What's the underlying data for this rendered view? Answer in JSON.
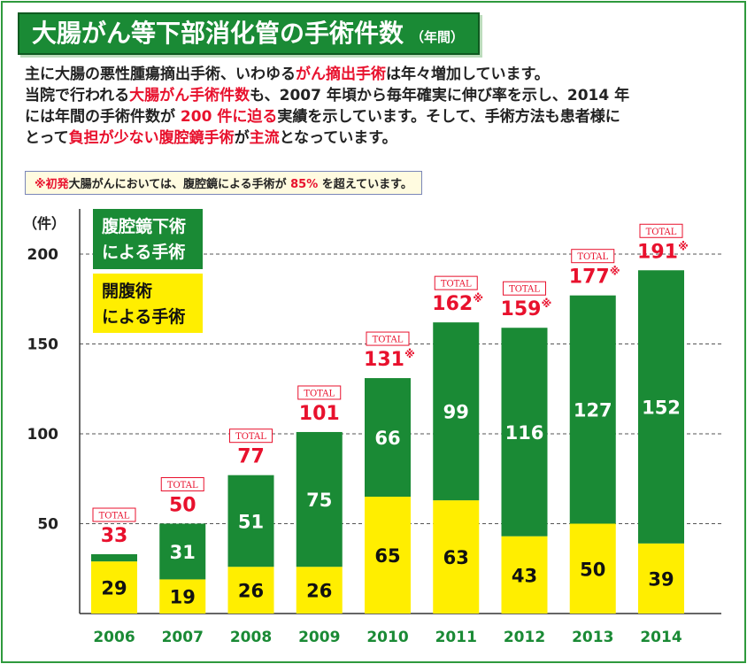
{
  "title": {
    "main": "大腸がん等下部消化管の手術件数",
    "sub": "（年間）"
  },
  "intro": {
    "l1_a": "主に大腸の悪性腫瘍摘出手術、いわゆる",
    "l1_hl": "がん摘出手術",
    "l1_b": "は年々増加しています。",
    "l2_a": "当院で行われる",
    "l2_hl": "大腸がん手術件数",
    "l2_b": "も、2007 年頃から毎年確実に伸び率を示し、2014 年",
    "l3_a": "には年間の手術件数が ",
    "l3_hl": "200 件に迫る",
    "l3_b": "実績を示しています。そして、手術方法も患者様に",
    "l4_a": "とって",
    "l4_hl1": "負担が少ない腹腔鏡手術",
    "l4_b": "が",
    "l4_hl2": "主流",
    "l4_c": "となっています。"
  },
  "note": {
    "hl1": "※初発",
    "a": "大腸がんにおいては、腹腔鏡による手術が ",
    "hl2": "85%",
    "b": " を超えています。"
  },
  "legend": {
    "laparoscopic_line1": "腹腔鏡下術",
    "laparoscopic_line2": "による手術",
    "open_line1": "開腹術",
    "open_line2": "による手術"
  },
  "colors": {
    "laparoscopic": "#1a8a35",
    "open": "#ffee00",
    "total": "#e8112d",
    "axis": "#333333"
  },
  "chart_data": {
    "type": "bar",
    "stacked": true,
    "title": "大腸がん等下部消化管の手術件数",
    "ylabel": "（件）",
    "xlabel": "",
    "ylim": [
      0,
      200
    ],
    "yticks": [
      50,
      100,
      150,
      200
    ],
    "grid": true,
    "categories": [
      "2006",
      "2007",
      "2008",
      "2009",
      "2010",
      "2011",
      "2012",
      "2013",
      "2014"
    ],
    "series": [
      {
        "name": "開腹術による手術",
        "values": [
          29,
          19,
          26,
          26,
          65,
          63,
          43,
          50,
          39
        ]
      },
      {
        "name": "腹腔鏡下術による手術",
        "values": [
          4,
          31,
          51,
          75,
          66,
          99,
          116,
          127,
          152
        ]
      }
    ],
    "segment_labels_lap": [
      "",
      "31",
      "51",
      "75",
      "66",
      "99",
      "116",
      "127",
      "152"
    ],
    "totals": [
      33,
      50,
      77,
      101,
      131,
      162,
      159,
      177,
      191
    ],
    "total_marks": [
      "",
      "",
      "",
      "",
      "※",
      "※",
      "※",
      "※",
      "※"
    ],
    "total_tag": "TOTAL"
  }
}
